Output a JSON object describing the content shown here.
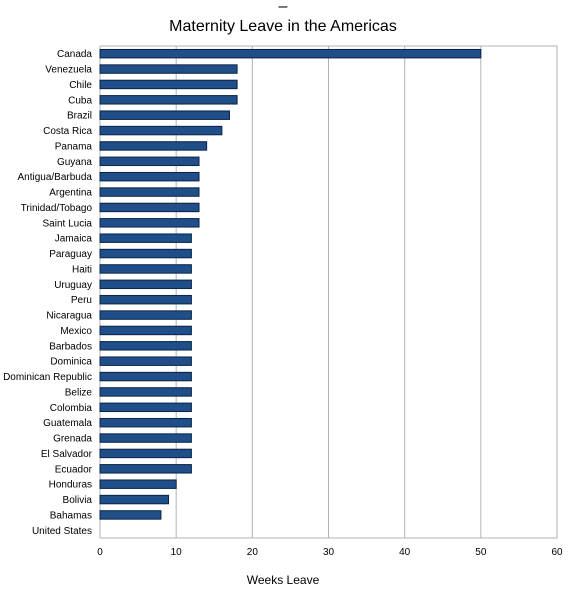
{
  "chart_data": {
    "type": "bar",
    "orientation": "horizontal",
    "top_mark": "–",
    "title": "Maternity Leave in the Americas",
    "xlabel": "Weeks Leave",
    "ylabel": "",
    "xlim": [
      0,
      60
    ],
    "xticks": [
      0,
      10,
      20,
      30,
      40,
      50,
      60
    ],
    "grid": true,
    "legend": "none",
    "bar_color": "#1f4e89",
    "categories": [
      "Canada",
      "Venezuela",
      "Chile",
      "Cuba",
      "Brazil",
      "Costa Rica",
      "Panama",
      "Guyana",
      "Antigua/Barbuda",
      "Argentina",
      "Trinidad/Tobago",
      "Saint Lucia",
      "Jamaica",
      "Paraguay",
      "Haiti",
      "Uruguay",
      "Peru",
      "Nicaragua",
      "Mexico",
      "Barbados",
      "Dominica",
      "Dominican Republic",
      "Belize",
      "Colombia",
      "Guatemala",
      "Grenada",
      "El Salvador",
      "Ecuador",
      "Honduras",
      "Bolivia",
      "Bahamas",
      "United States"
    ],
    "values": [
      50,
      18,
      18,
      18,
      17,
      16,
      14,
      13,
      13,
      13,
      13,
      13,
      12,
      12,
      12,
      12,
      12,
      12,
      12,
      12,
      12,
      12,
      12,
      12,
      12,
      12,
      12,
      12,
      10,
      9,
      8,
      0
    ]
  }
}
